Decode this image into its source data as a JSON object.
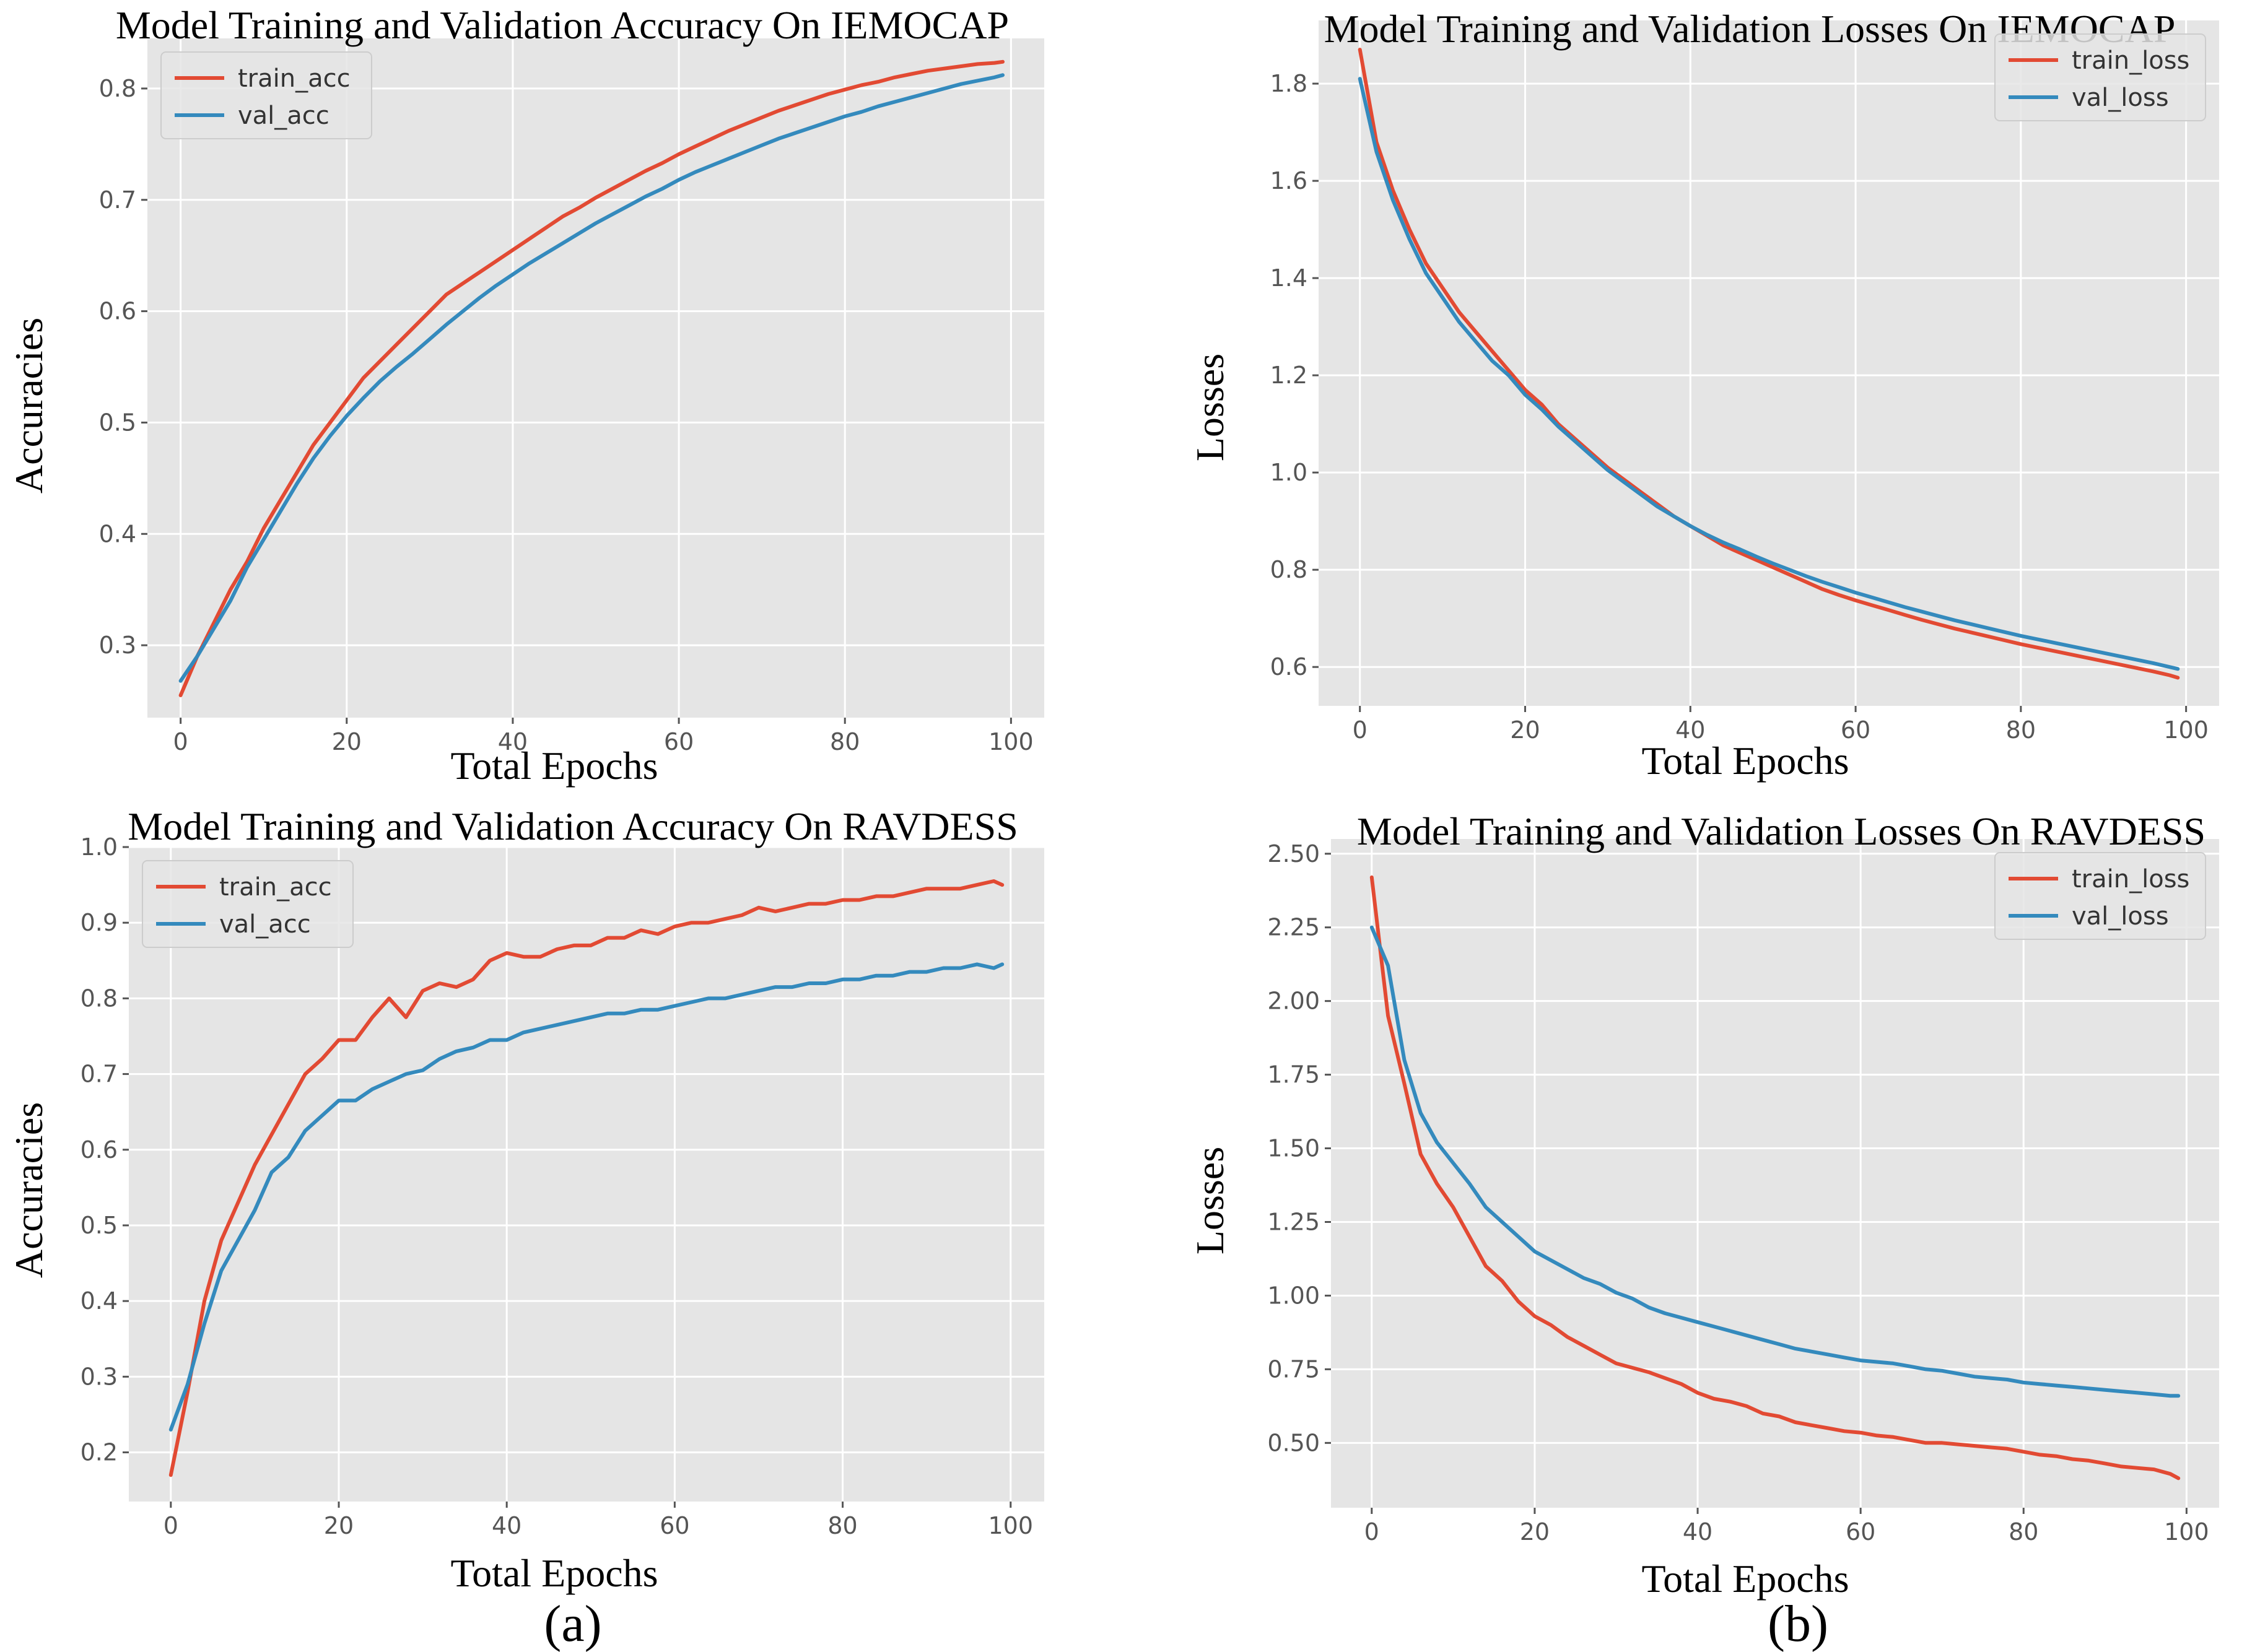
{
  "panel_labels": [
    "(a)",
    "(b)"
  ],
  "colors": {
    "train": "#E24A33",
    "val": "#348ABD",
    "plot_bg": "#E5E5E5",
    "grid": "#FFFFFF"
  },
  "chart_data": [
    {
      "type": "line",
      "title": "Model Training and Validation Accuracy  On IEMOCAP",
      "xlabel": "Total Epochs",
      "ylabel": "Accuracies",
      "xlim": [
        -4,
        104
      ],
      "ylim": [
        0.235,
        0.845
      ],
      "xticks": [
        0,
        20,
        40,
        60,
        80,
        100
      ],
      "yticks": [
        0.3,
        0.4,
        0.5,
        0.6,
        0.7,
        0.8
      ],
      "ytick_labels": [
        "0.3",
        "0.4",
        "0.5",
        "0.6",
        "0.7",
        "0.8"
      ],
      "legend": "top-left",
      "gen": {
        "kind": "acc_smooth"
      },
      "series": [
        {
          "name": "train_acc",
          "color": "#E24A33",
          "x": [
            0,
            2,
            4,
            6,
            8,
            10,
            12,
            14,
            16,
            18,
            20,
            22,
            24,
            26,
            28,
            30,
            32,
            34,
            36,
            38,
            40,
            42,
            44,
            46,
            48,
            50,
            52,
            54,
            56,
            58,
            60,
            62,
            64,
            66,
            68,
            70,
            72,
            74,
            76,
            78,
            80,
            82,
            84,
            86,
            88,
            90,
            92,
            94,
            96,
            98,
            99
          ],
          "values": [
            0.255,
            0.29,
            0.32,
            0.35,
            0.375,
            0.405,
            0.43,
            0.455,
            0.48,
            0.5,
            0.52,
            0.54,
            0.555,
            0.57,
            0.585,
            0.6,
            0.615,
            0.625,
            0.635,
            0.645,
            0.655,
            0.665,
            0.675,
            0.685,
            0.693,
            0.702,
            0.71,
            0.718,
            0.726,
            0.733,
            0.741,
            0.748,
            0.755,
            0.762,
            0.768,
            0.774,
            0.78,
            0.785,
            0.79,
            0.795,
            0.799,
            0.803,
            0.806,
            0.81,
            0.813,
            0.816,
            0.818,
            0.82,
            0.822,
            0.823,
            0.824
          ]
        },
        {
          "name": "val_acc",
          "color": "#348ABD",
          "x": [
            0,
            2,
            4,
            6,
            8,
            10,
            12,
            14,
            16,
            18,
            20,
            22,
            24,
            26,
            28,
            30,
            32,
            34,
            36,
            38,
            40,
            42,
            44,
            46,
            48,
            50,
            52,
            54,
            56,
            58,
            60,
            62,
            64,
            66,
            68,
            70,
            72,
            74,
            76,
            78,
            80,
            82,
            84,
            86,
            88,
            90,
            92,
            94,
            96,
            98,
            99
          ],
          "values": [
            0.268,
            0.29,
            0.315,
            0.34,
            0.37,
            0.395,
            0.42,
            0.445,
            0.468,
            0.488,
            0.506,
            0.522,
            0.537,
            0.55,
            0.562,
            0.575,
            0.588,
            0.6,
            0.612,
            0.623,
            0.633,
            0.643,
            0.652,
            0.661,
            0.67,
            0.679,
            0.687,
            0.695,
            0.703,
            0.71,
            0.718,
            0.725,
            0.731,
            0.737,
            0.743,
            0.749,
            0.755,
            0.76,
            0.765,
            0.77,
            0.775,
            0.779,
            0.784,
            0.788,
            0.792,
            0.796,
            0.8,
            0.804,
            0.807,
            0.81,
            0.812
          ]
        }
      ]
    },
    {
      "type": "line",
      "title": "Model Training and Validation Losses On IEMOCAP",
      "xlabel": "Total Epochs",
      "ylabel": "Losses",
      "xlim": [
        -5,
        104
      ],
      "ylim": [
        0.52,
        1.93
      ],
      "xticks": [
        0,
        20,
        40,
        60,
        80,
        100
      ],
      "yticks": [
        0.6,
        0.8,
        1.0,
        1.2,
        1.4,
        1.6,
        1.8
      ],
      "ytick_labels": [
        "0.6",
        "0.8",
        "1.0",
        "1.2",
        "1.4",
        "1.6",
        "1.8"
      ],
      "legend": "top-right",
      "series": [
        {
          "name": "train_loss",
          "color": "#E24A33",
          "x": [
            0,
            2,
            4,
            6,
            8,
            10,
            12,
            14,
            16,
            18,
            20,
            22,
            24,
            26,
            28,
            30,
            32,
            34,
            36,
            38,
            40,
            42,
            44,
            46,
            48,
            50,
            52,
            54,
            56,
            58,
            60,
            62,
            64,
            66,
            68,
            70,
            72,
            74,
            76,
            78,
            80,
            82,
            84,
            86,
            88,
            90,
            92,
            94,
            96,
            98,
            99
          ],
          "values": [
            1.87,
            1.68,
            1.58,
            1.5,
            1.43,
            1.38,
            1.33,
            1.29,
            1.25,
            1.21,
            1.17,
            1.14,
            1.1,
            1.07,
            1.04,
            1.01,
            0.985,
            0.96,
            0.935,
            0.91,
            0.89,
            0.87,
            0.85,
            0.835,
            0.82,
            0.805,
            0.79,
            0.775,
            0.76,
            0.748,
            0.737,
            0.727,
            0.717,
            0.707,
            0.697,
            0.688,
            0.679,
            0.671,
            0.663,
            0.655,
            0.647,
            0.64,
            0.633,
            0.626,
            0.619,
            0.612,
            0.605,
            0.598,
            0.591,
            0.583,
            0.578
          ]
        },
        {
          "name": "val_loss",
          "color": "#348ABD",
          "x": [
            0,
            2,
            4,
            6,
            8,
            10,
            12,
            14,
            16,
            18,
            20,
            22,
            24,
            26,
            28,
            30,
            32,
            34,
            36,
            38,
            40,
            42,
            44,
            46,
            48,
            50,
            52,
            54,
            56,
            58,
            60,
            62,
            64,
            66,
            68,
            70,
            72,
            74,
            76,
            78,
            80,
            82,
            84,
            86,
            88,
            90,
            92,
            94,
            96,
            98,
            99
          ],
          "values": [
            1.81,
            1.66,
            1.56,
            1.48,
            1.41,
            1.36,
            1.31,
            1.27,
            1.23,
            1.2,
            1.16,
            1.13,
            1.095,
            1.065,
            1.035,
            1.005,
            0.98,
            0.955,
            0.93,
            0.91,
            0.89,
            0.872,
            0.856,
            0.842,
            0.827,
            0.813,
            0.8,
            0.787,
            0.775,
            0.764,
            0.753,
            0.743,
            0.733,
            0.723,
            0.714,
            0.705,
            0.696,
            0.688,
            0.68,
            0.672,
            0.664,
            0.657,
            0.65,
            0.643,
            0.636,
            0.629,
            0.622,
            0.615,
            0.608,
            0.6,
            0.596
          ]
        }
      ]
    },
    {
      "type": "line",
      "title": "Model Training and Validation Accuracy  On RAVDESS",
      "xlabel": "Total Epochs",
      "ylabel": "Accuracies",
      "xlim": [
        -5,
        104
      ],
      "ylim": [
        0.135,
        1.0
      ],
      "xticks": [
        0,
        20,
        40,
        60,
        80,
        100
      ],
      "yticks": [
        0.2,
        0.3,
        0.4,
        0.5,
        0.6,
        0.7,
        0.8,
        0.9,
        1.0
      ],
      "ytick_labels": [
        "0.2",
        "0.3",
        "0.4",
        "0.5",
        "0.6",
        "0.7",
        "0.8",
        "0.9",
        "1.0"
      ],
      "legend": "top-left",
      "series": [
        {
          "name": "train_acc",
          "color": "#E24A33",
          "x": [
            0,
            2,
            4,
            6,
            8,
            10,
            12,
            14,
            16,
            18,
            20,
            22,
            24,
            26,
            28,
            30,
            32,
            34,
            36,
            38,
            40,
            42,
            44,
            46,
            48,
            50,
            52,
            54,
            56,
            58,
            60,
            62,
            64,
            66,
            68,
            70,
            72,
            74,
            76,
            78,
            80,
            82,
            84,
            86,
            88,
            90,
            92,
            94,
            96,
            98,
            99
          ],
          "values": [
            0.17,
            0.28,
            0.4,
            0.48,
            0.53,
            0.58,
            0.62,
            0.66,
            0.7,
            0.72,
            0.745,
            0.745,
            0.775,
            0.8,
            0.775,
            0.81,
            0.82,
            0.815,
            0.825,
            0.85,
            0.86,
            0.855,
            0.855,
            0.865,
            0.87,
            0.87,
            0.88,
            0.88,
            0.89,
            0.885,
            0.895,
            0.9,
            0.9,
            0.905,
            0.91,
            0.92,
            0.915,
            0.92,
            0.925,
            0.925,
            0.93,
            0.93,
            0.935,
            0.935,
            0.94,
            0.945,
            0.945,
            0.945,
            0.95,
            0.955,
            0.95
          ]
        },
        {
          "name": "val_acc",
          "color": "#348ABD",
          "x": [
            0,
            2,
            4,
            6,
            8,
            10,
            12,
            14,
            16,
            18,
            20,
            22,
            24,
            26,
            28,
            30,
            32,
            34,
            36,
            38,
            40,
            42,
            44,
            46,
            48,
            50,
            52,
            54,
            56,
            58,
            60,
            62,
            64,
            66,
            68,
            70,
            72,
            74,
            76,
            78,
            80,
            82,
            84,
            86,
            88,
            90,
            92,
            94,
            96,
            98,
            99
          ],
          "values": [
            0.23,
            0.29,
            0.37,
            0.44,
            0.48,
            0.52,
            0.57,
            0.59,
            0.625,
            0.645,
            0.665,
            0.665,
            0.68,
            0.69,
            0.7,
            0.705,
            0.72,
            0.73,
            0.735,
            0.745,
            0.745,
            0.755,
            0.76,
            0.765,
            0.77,
            0.775,
            0.78,
            0.78,
            0.785,
            0.785,
            0.79,
            0.795,
            0.8,
            0.8,
            0.805,
            0.81,
            0.815,
            0.815,
            0.82,
            0.82,
            0.825,
            0.825,
            0.83,
            0.83,
            0.835,
            0.835,
            0.84,
            0.84,
            0.845,
            0.84,
            0.845
          ]
        }
      ]
    },
    {
      "type": "line",
      "title": "Model Training and Validation Losses On RAVDESS",
      "xlabel": "Total Epochs",
      "ylabel": "Losses",
      "xlim": [
        -5,
        104
      ],
      "ylim": [
        0.28,
        2.55
      ],
      "xticks": [
        0,
        20,
        40,
        60,
        80,
        100
      ],
      "yticks": [
        0.5,
        0.75,
        1.0,
        1.25,
        1.5,
        1.75,
        2.0,
        2.25,
        2.5
      ],
      "ytick_labels": [
        "0.50",
        "0.75",
        "1.00",
        "1.25",
        "1.50",
        "1.75",
        "2.00",
        "2.25",
        "2.50"
      ],
      "legend": "top-right",
      "series": [
        {
          "name": "train_loss",
          "color": "#E24A33",
          "x": [
            0,
            2,
            4,
            6,
            8,
            10,
            12,
            14,
            16,
            18,
            20,
            22,
            24,
            26,
            28,
            30,
            32,
            34,
            36,
            38,
            40,
            42,
            44,
            46,
            48,
            50,
            52,
            54,
            56,
            58,
            60,
            62,
            64,
            66,
            68,
            70,
            72,
            74,
            76,
            78,
            80,
            82,
            84,
            86,
            88,
            90,
            92,
            94,
            96,
            98,
            99
          ],
          "values": [
            2.42,
            1.95,
            1.72,
            1.48,
            1.38,
            1.3,
            1.2,
            1.1,
            1.05,
            0.98,
            0.93,
            0.9,
            0.86,
            0.83,
            0.8,
            0.77,
            0.755,
            0.74,
            0.72,
            0.7,
            0.67,
            0.65,
            0.64,
            0.625,
            0.6,
            0.59,
            0.57,
            0.56,
            0.55,
            0.54,
            0.535,
            0.525,
            0.52,
            0.51,
            0.5,
            0.5,
            0.495,
            0.49,
            0.485,
            0.48,
            0.47,
            0.46,
            0.455,
            0.445,
            0.44,
            0.43,
            0.42,
            0.415,
            0.41,
            0.395,
            0.38
          ]
        },
        {
          "name": "val_loss",
          "color": "#348ABD",
          "x": [
            0,
            2,
            4,
            6,
            8,
            10,
            12,
            14,
            16,
            18,
            20,
            22,
            24,
            26,
            28,
            30,
            32,
            34,
            36,
            38,
            40,
            42,
            44,
            46,
            48,
            50,
            52,
            54,
            56,
            58,
            60,
            62,
            64,
            66,
            68,
            70,
            72,
            74,
            76,
            78,
            80,
            82,
            84,
            86,
            88,
            90,
            92,
            94,
            96,
            98,
            99
          ],
          "values": [
            2.25,
            2.12,
            1.8,
            1.62,
            1.52,
            1.45,
            1.38,
            1.3,
            1.25,
            1.2,
            1.15,
            1.12,
            1.09,
            1.06,
            1.04,
            1.01,
            0.99,
            0.96,
            0.94,
            0.925,
            0.91,
            0.895,
            0.88,
            0.865,
            0.85,
            0.835,
            0.82,
            0.81,
            0.8,
            0.79,
            0.78,
            0.775,
            0.77,
            0.76,
            0.75,
            0.745,
            0.735,
            0.725,
            0.72,
            0.715,
            0.705,
            0.7,
            0.695,
            0.69,
            0.685,
            0.68,
            0.675,
            0.67,
            0.665,
            0.66,
            0.66
          ]
        }
      ]
    }
  ]
}
